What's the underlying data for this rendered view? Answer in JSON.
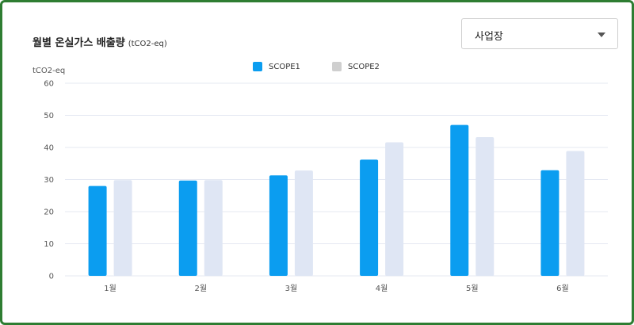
{
  "title": "월별 온실가스 배출량",
  "title_unit": "(tCO2-eq)",
  "filter": {
    "label": "사업장",
    "icon": "chevron-down-icon"
  },
  "colors": {
    "scope1": "#0b9df0",
    "scope2": "#dfe6f4",
    "frame": "#2e7d32",
    "grid": "#e4e8f2"
  },
  "chart_data": {
    "type": "bar",
    "categories": [
      "1월",
      "2월",
      "3월",
      "4월",
      "5월",
      "6월"
    ],
    "series": [
      {
        "name": "SCOPE1",
        "values": [
          28,
          29.7,
          31.3,
          36.2,
          47,
          32.9
        ]
      },
      {
        "name": "SCOPE2",
        "values": [
          29.8,
          29.8,
          32.8,
          41.6,
          43.2,
          38.9
        ]
      }
    ],
    "ylabel": "tCO2-eq",
    "ylim": [
      0,
      60
    ],
    "yticks": [
      "0",
      "10",
      "20",
      "30",
      "40",
      "50",
      "60"
    ],
    "grid": true,
    "legend": "top-center"
  }
}
